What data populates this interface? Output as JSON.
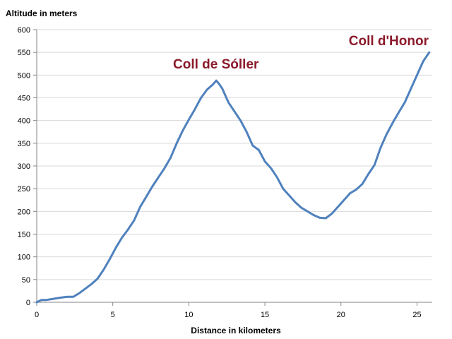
{
  "chart_data": {
    "type": "line",
    "title": "",
    "xlabel": "Distance in kilometers",
    "ylabel": "Altitude in meters",
    "xlim": [
      0,
      26
    ],
    "ylim": [
      0,
      600
    ],
    "x_ticks": [
      0,
      5,
      10,
      15,
      20,
      25
    ],
    "y_ticks": [
      0,
      50,
      100,
      150,
      200,
      250,
      300,
      350,
      400,
      450,
      500,
      550,
      600
    ],
    "grid": "horizontal",
    "legend": "none",
    "colors": {
      "line": "#4f81bd",
      "annotation": "#8b1a2b",
      "grid": "#d9d9d9",
      "axis": "#868686"
    },
    "annotations": [
      {
        "text": "Coll de Sóller",
        "x": 12.0,
        "y": 495
      },
      {
        "text": "Coll d'Honor",
        "x": 25.8,
        "y": 550
      }
    ],
    "series": [
      {
        "x": [
          0,
          0.3,
          0.6,
          1.0,
          1.5,
          2.0,
          2.4,
          2.8,
          3.2,
          3.6,
          4.0,
          4.4,
          4.8,
          5.2,
          5.6,
          6.0,
          6.4,
          6.8,
          7.2,
          7.6,
          8.0,
          8.4,
          8.8,
          9.2,
          9.6,
          10.0,
          10.4,
          10.8,
          11.2,
          11.6,
          11.8,
          12.0,
          12.2,
          12.6,
          13.0,
          13.4,
          13.8,
          14.2,
          14.6,
          15.0,
          15.4,
          15.8,
          16.2,
          16.6,
          17.0,
          17.4,
          17.8,
          18.2,
          18.6,
          19.0,
          19.4,
          19.8,
          20.2,
          20.6,
          21.0,
          21.4,
          21.8,
          22.2,
          22.6,
          23.0,
          23.4,
          23.8,
          24.2,
          24.6,
          25.0,
          25.4,
          25.8
        ],
        "y": [
          0,
          5,
          5,
          7,
          10,
          12,
          12,
          20,
          30,
          40,
          52,
          72,
          95,
          120,
          142,
          160,
          180,
          210,
          232,
          255,
          275,
          295,
          318,
          350,
          378,
          402,
          425,
          450,
          468,
          480,
          488,
          480,
          470,
          440,
          420,
          400,
          375,
          345,
          335,
          310,
          295,
          275,
          250,
          235,
          220,
          208,
          200,
          192,
          186,
          185,
          195,
          210,
          225,
          240,
          248,
          260,
          282,
          302,
          340,
          370,
          395,
          418,
          440,
          470,
          500,
          530,
          550
        ]
      }
    ]
  }
}
